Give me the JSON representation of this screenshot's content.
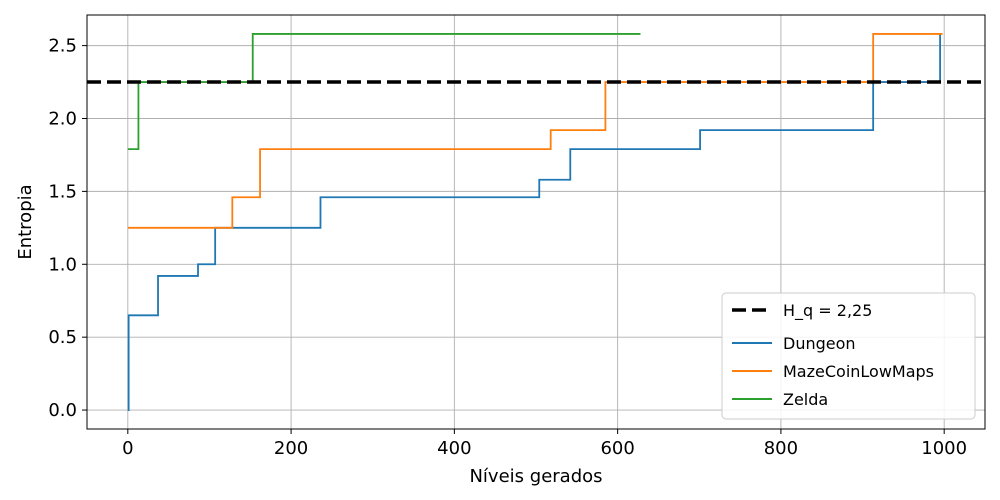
{
  "chart_data": {
    "type": "line",
    "title": "",
    "xlabel": "Níveis gerados",
    "ylabel": "Entropia",
    "xlim": [
      -50,
      1050
    ],
    "ylim": [
      -0.13,
      2.71
    ],
    "xticks": [
      0,
      200,
      400,
      600,
      800,
      1000
    ],
    "yticks": [
      0.0,
      0.5,
      1.0,
      1.5,
      2.0,
      2.5
    ],
    "xtick_labels": [
      "0",
      "200",
      "400",
      "600",
      "800",
      "1000"
    ],
    "ytick_labels": [
      "0.0",
      "0.5",
      "1.0",
      "1.5",
      "2.0",
      "2.5"
    ],
    "grid": true,
    "legend_position": "bottom-right",
    "reference_line": {
      "label": "H_q = 2,25",
      "value": 2.25,
      "color": "#000000",
      "style": "dashed"
    },
    "series": [
      {
        "name": "Dungeon",
        "color": "#1f77b4",
        "step_points": [
          [
            0,
            0.0
          ],
          [
            1,
            0.65
          ],
          [
            37,
            0.92
          ],
          [
            86,
            1.0
          ],
          [
            107,
            1.25
          ],
          [
            236,
            1.46
          ],
          [
            504,
            1.58
          ],
          [
            542,
            1.79
          ],
          [
            701,
            1.92
          ],
          [
            913,
            2.25
          ],
          [
            995,
            2.58
          ]
        ]
      },
      {
        "name": "MazeCoinLowMaps",
        "color": "#ff7f0e",
        "step_points": [
          [
            0,
            1.25
          ],
          [
            128,
            1.46
          ],
          [
            162,
            1.79
          ],
          [
            518,
            1.92
          ],
          [
            585,
            2.25
          ],
          [
            913,
            2.58
          ],
          [
            998,
            2.58
          ]
        ]
      },
      {
        "name": "Zelda",
        "color": "#2ca02c",
        "step_points": [
          [
            0,
            1.79
          ],
          [
            13,
            2.25
          ],
          [
            153,
            2.58
          ],
          [
            628,
            2.58
          ]
        ]
      }
    ]
  }
}
